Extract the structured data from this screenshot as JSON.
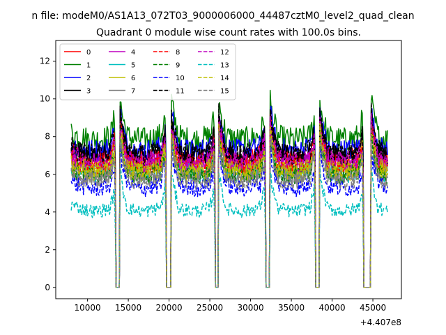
{
  "figure": {
    "suptitle": "n file: modeM0/AS1A13_072T03_9000006000_44487cztM0_level2_quad_clean",
    "offset_label": "+4.407e8"
  },
  "chart_data": {
    "type": "line",
    "title": "Quadrant 0 module wise count rates with 100.0s bins.",
    "xlabel": "",
    "ylabel": "",
    "x_offset": 440700000,
    "x_range": [
      8000,
      46800
    ],
    "xlim": [
      6100,
      48500
    ],
    "ylim": [
      -0.6,
      13.1
    ],
    "xticks": [
      10000,
      15000,
      20000,
      25000,
      30000,
      35000,
      40000,
      45000
    ],
    "yticks": [
      0,
      2,
      4,
      6,
      8,
      10,
      12
    ],
    "bin_seconds": 100,
    "gaps": [
      [
        13500,
        13900
      ],
      [
        19700,
        20200
      ],
      [
        25700,
        26000
      ],
      [
        31900,
        32300
      ],
      [
        38000,
        38400
      ],
      [
        43900,
        44700
      ]
    ],
    "legend_position": "upper-left",
    "grid": false,
    "series": [
      {
        "name": "0",
        "color": "#ff0000",
        "dash": "solid",
        "base": 7.1
      },
      {
        "name": "1",
        "color": "#008000",
        "dash": "solid",
        "base": 8.2
      },
      {
        "name": "2",
        "color": "#0000ff",
        "dash": "solid",
        "base": 7.6
      },
      {
        "name": "3",
        "color": "#000000",
        "dash": "solid",
        "base": 7.3
      },
      {
        "name": "4",
        "color": "#bf00bf",
        "dash": "solid",
        "base": 6.8
      },
      {
        "name": "5",
        "color": "#00bfbf",
        "dash": "solid",
        "base": 6.4
      },
      {
        "name": "6",
        "color": "#bfbf00",
        "dash": "solid",
        "base": 6.6
      },
      {
        "name": "7",
        "color": "#808080",
        "dash": "solid",
        "base": 6.2
      },
      {
        "name": "8",
        "color": "#ff0000",
        "dash": "dashed",
        "base": 6.9
      },
      {
        "name": "9",
        "color": "#008000",
        "dash": "dashed",
        "base": 6.3
      },
      {
        "name": "10",
        "color": "#0000ff",
        "dash": "dashed",
        "base": 5.6
      },
      {
        "name": "11",
        "color": "#000000",
        "dash": "dashed",
        "base": 7.4
      },
      {
        "name": "12",
        "color": "#bf00bf",
        "dash": "dashed",
        "base": 7.0
      },
      {
        "name": "13",
        "color": "#00bfbf",
        "dash": "dashed",
        "base": 4.4
      },
      {
        "name": "14",
        "color": "#bfbf00",
        "dash": "dashed",
        "base": 6.5
      },
      {
        "name": "15",
        "color": "#808080",
        "dash": "dashed",
        "base": 6.0
      }
    ]
  }
}
